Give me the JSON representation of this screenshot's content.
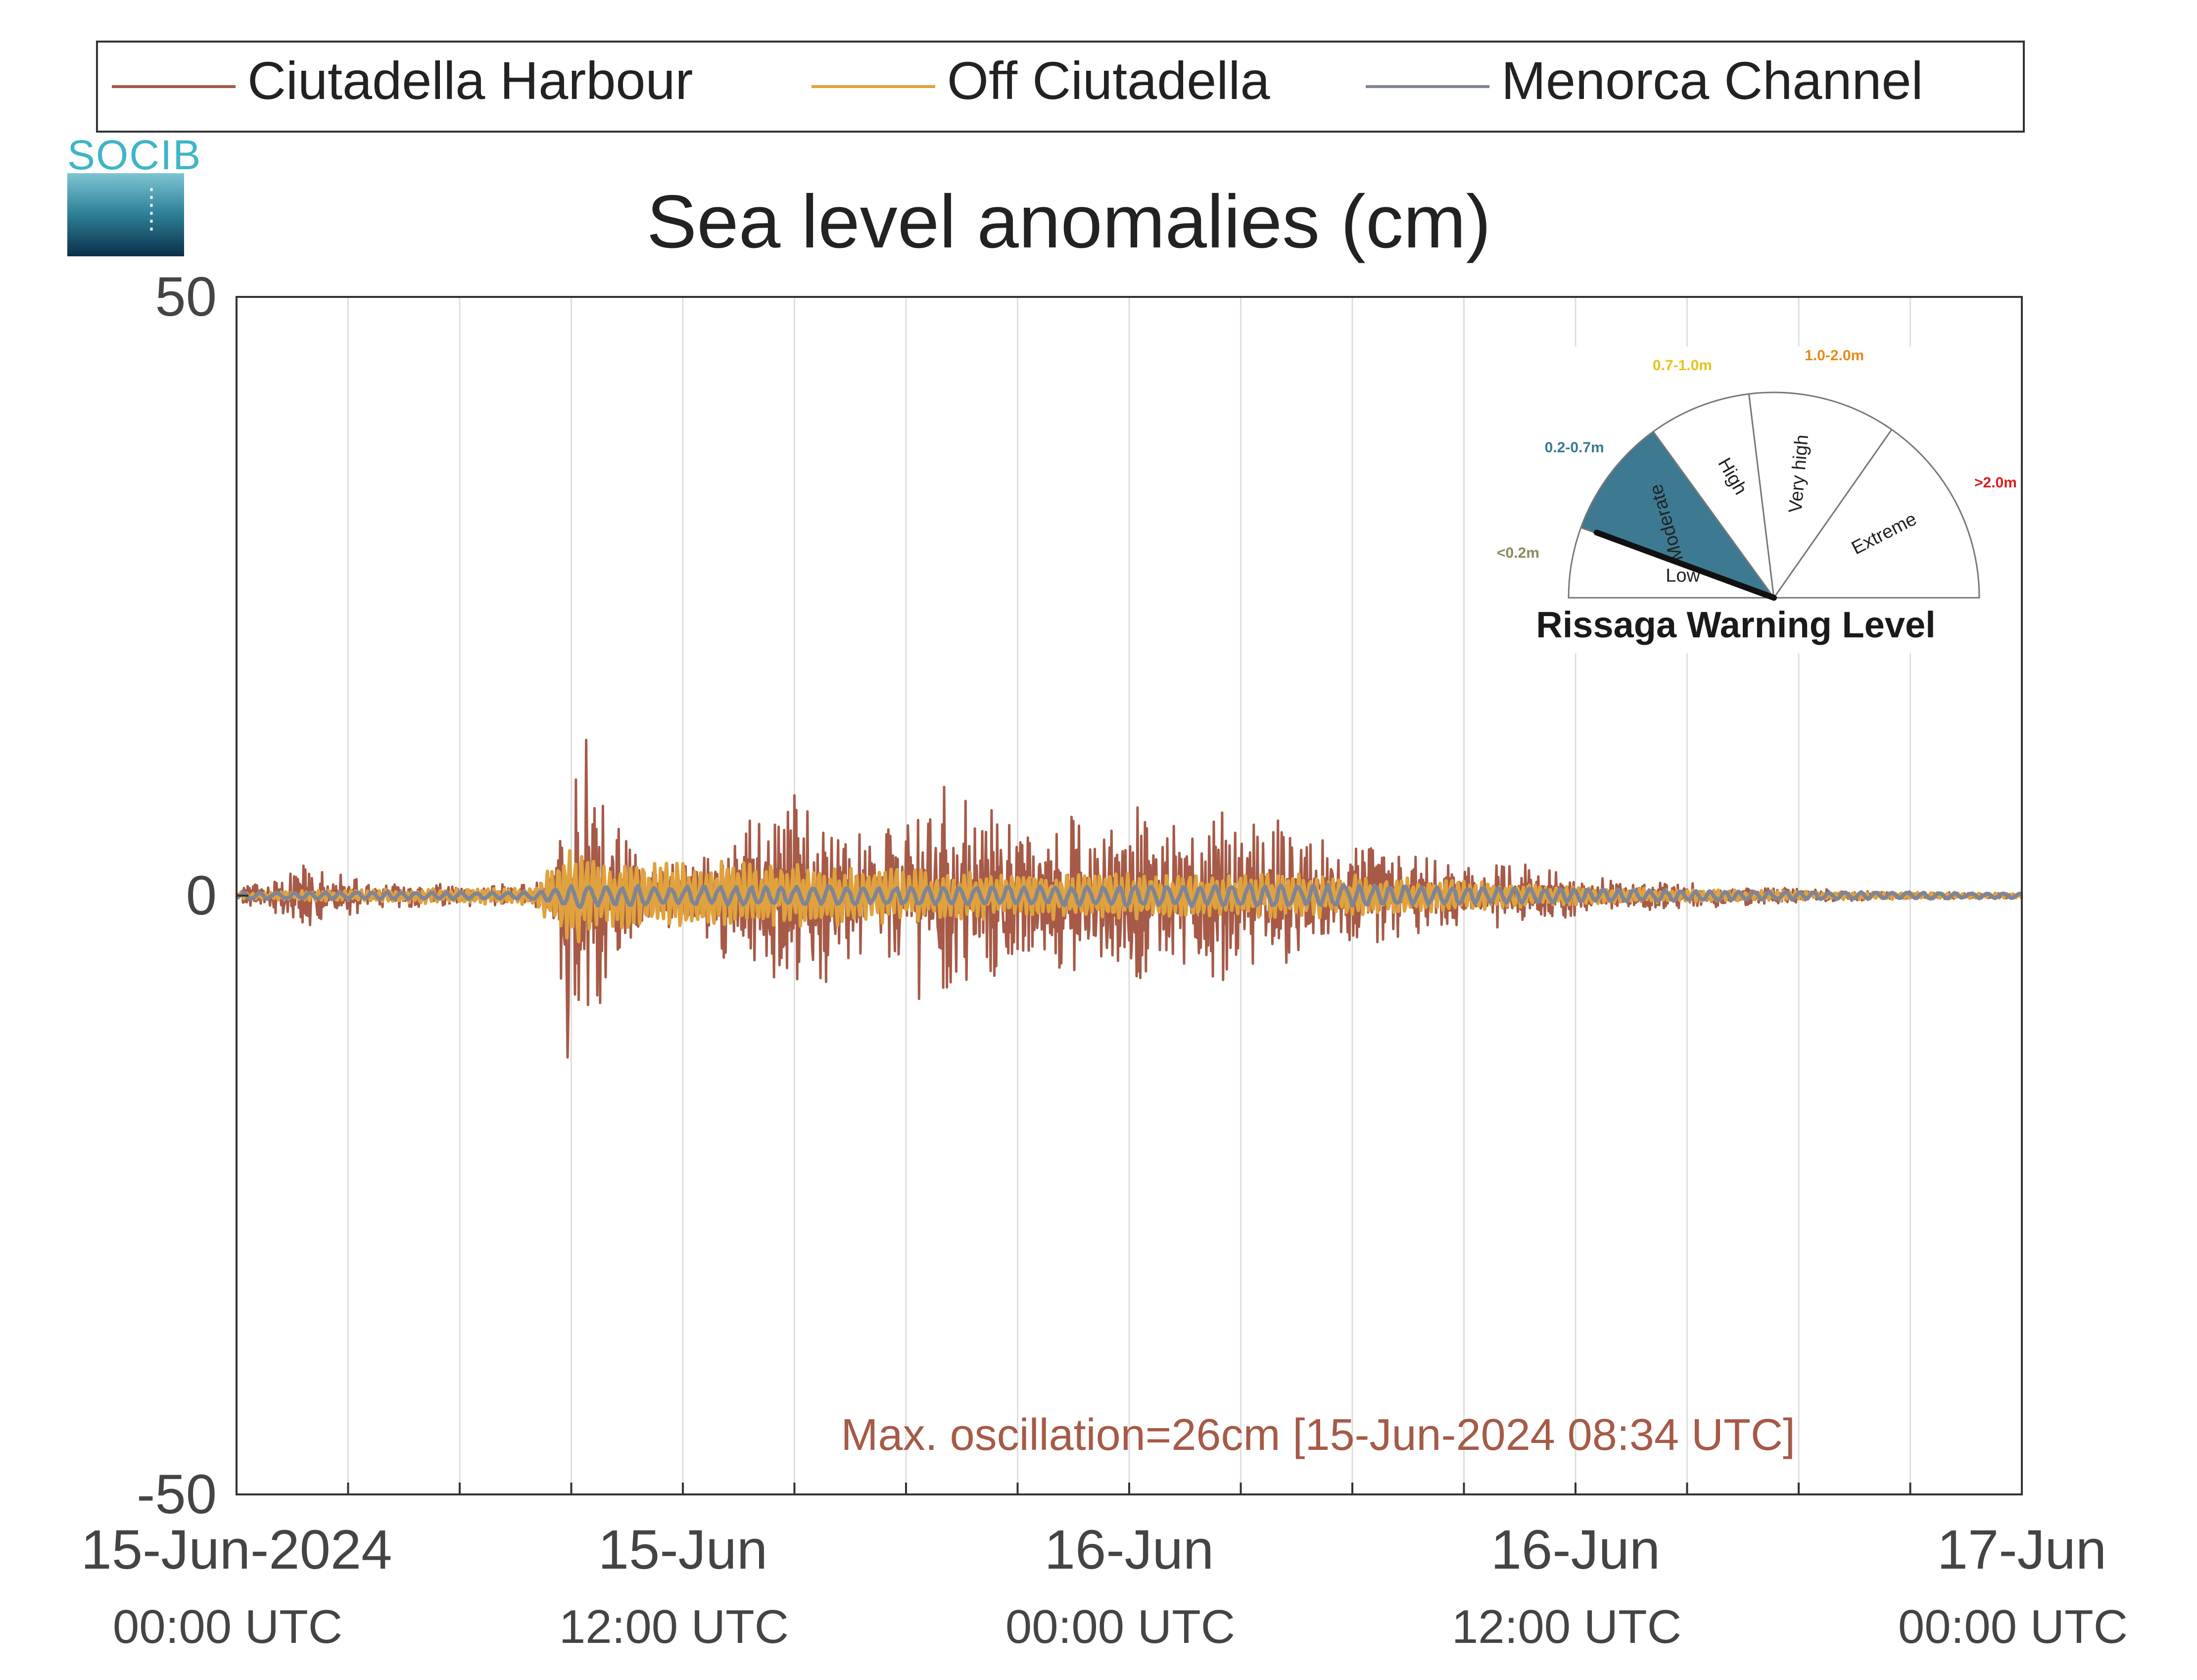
{
  "legend": {
    "items": [
      {
        "label": "Ciutadella Harbour",
        "color": "#a65a47"
      },
      {
        "label": "Off Ciutadella",
        "color": "#e0a23e"
      },
      {
        "label": "Menorca Channel",
        "color": "#7f8594"
      }
    ]
  },
  "logo": {
    "text": "SOCIB"
  },
  "chart_data": {
    "type": "line",
    "title": "Sea level anomalies (cm)",
    "xlabel": "",
    "ylabel": "",
    "ylim": [
      -50,
      50
    ],
    "y_ticks": [
      -50,
      0,
      50
    ],
    "x_range_hours": [
      0,
      48
    ],
    "x_grid_interval_hours": 3,
    "x_ticks": [
      {
        "hour": 0,
        "label": "15-Jun-2024",
        "sublabel": "00:00 UTC"
      },
      {
        "hour": 12,
        "label": "15-Jun",
        "sublabel": "12:00 UTC"
      },
      {
        "hour": 24,
        "label": "16-Jun",
        "sublabel": "00:00 UTC"
      },
      {
        "hour": 36,
        "label": "16-Jun",
        "sublabel": "12:00 UTC"
      },
      {
        "hour": 48,
        "label": "17-Jun",
        "sublabel": "00:00 UTC"
      }
    ],
    "grid": true,
    "legend_position": "top",
    "series": [
      {
        "name": "Ciutadella Harbour",
        "color": "#a65a47",
        "envelope_hours": [
          0,
          2,
          4,
          6,
          8,
          8.5,
          9,
          10,
          11,
          13,
          14,
          15,
          17,
          18,
          19,
          20,
          21,
          23,
          24,
          25,
          26,
          27,
          28,
          29,
          31,
          33,
          35,
          37,
          38,
          40,
          42,
          44,
          46,
          48
        ],
        "envelope_cm": [
          0.5,
          3,
          1,
          1,
          1,
          2,
          13,
          8,
          2,
          5,
          7,
          9,
          5,
          8,
          10,
          8,
          6,
          7,
          8,
          6,
          9,
          6,
          7,
          5,
          4,
          3,
          2.5,
          1.5,
          1.2,
          1,
          0.6,
          0.4,
          0.3,
          0.2
        ],
        "extremes": {
          "max_cm": 13,
          "min_cm": -13.5
        }
      },
      {
        "name": "Off Ciutadella",
        "color": "#e0a23e",
        "envelope_hours": [
          0,
          4,
          8,
          9,
          10,
          14,
          16,
          20,
          24,
          28,
          32,
          36,
          40,
          44,
          48
        ],
        "envelope_cm": [
          0.3,
          0.6,
          0.8,
          4.5,
          3,
          3,
          2.5,
          2,
          2,
          2,
          1.5,
          0.8,
          0.5,
          0.3,
          0.2
        ]
      },
      {
        "name": "Menorca Channel",
        "color": "#7f8594",
        "envelope_hours": [
          0,
          8,
          9,
          12,
          20,
          28,
          32,
          40,
          48
        ],
        "envelope_cm": [
          0.3,
          0.3,
          1,
          0.8,
          0.8,
          1,
          0.8,
          0.4,
          0.2
        ]
      }
    ],
    "annotation": "Max. oscillation=26cm [15-Jun-2024 08:34 UTC]",
    "annotation_color": "#a65a47"
  },
  "gauge": {
    "title": "Rissaga Warning Level",
    "current_level": "Moderate",
    "needle_fraction": 0.09,
    "levels": [
      {
        "name": "Low",
        "range": "<0.2m",
        "range_color": "#8a8a5c",
        "fill": "#ffffff"
      },
      {
        "name": "Moderate",
        "range": "0.2-0.7m",
        "range_color": "#3a7a94",
        "fill": "#3d7a91"
      },
      {
        "name": "High",
        "range": "0.7-1.0m",
        "range_color": "#e8c21a",
        "fill": "#ffffff"
      },
      {
        "name": "Very high",
        "range": "1.0-2.0m",
        "range_color": "#e88a1a",
        "fill": "#ffffff"
      },
      {
        "name": "Extreme",
        "range": ">2.0m",
        "range_color": "#d81e1e",
        "fill": "#ffffff"
      }
    ]
  }
}
